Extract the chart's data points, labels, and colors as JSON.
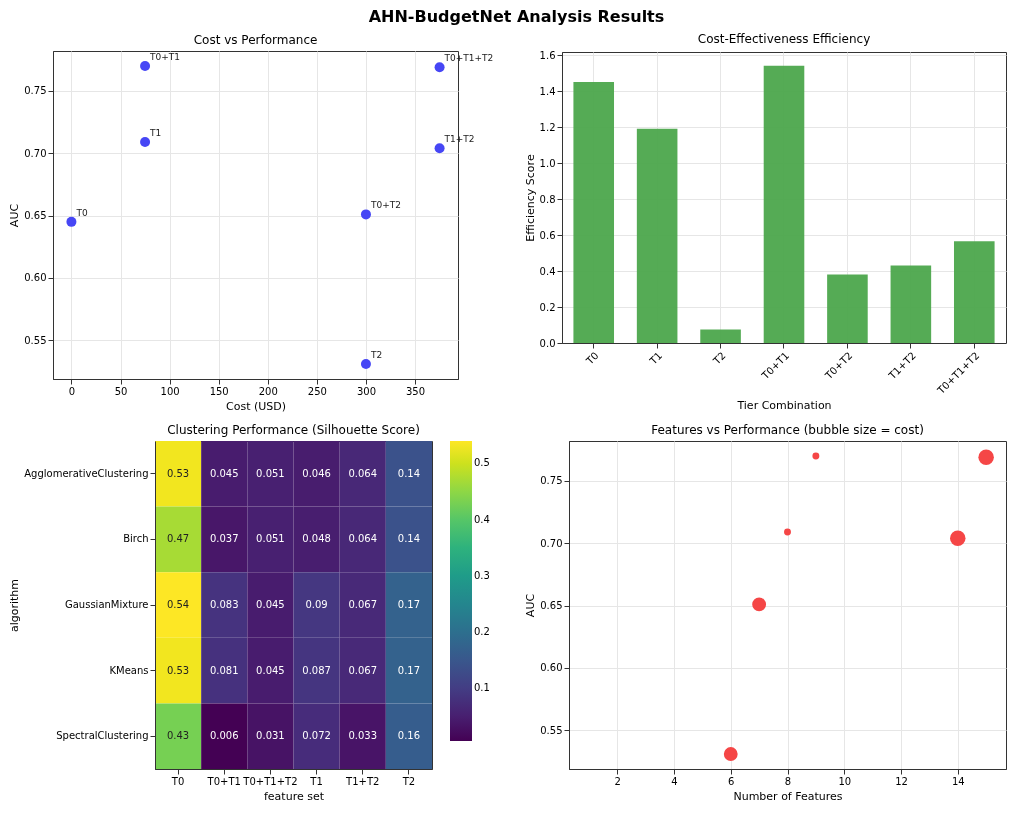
{
  "chart_data": [
    {
      "type": "other",
      "title": "AHN-BudgetNet Analysis Results"
    },
    {
      "type": "scatter",
      "title": "Cost vs Performance",
      "xlabel": "Cost (USD)",
      "ylabel": "AUC",
      "marker": "circle",
      "grid": true,
      "x": [
        0,
        75,
        300,
        75,
        300,
        375,
        375
      ],
      "values": [
        0.645,
        0.709,
        0.531,
        0.77,
        0.651,
        0.704,
        0.769
      ],
      "color": "#4646f5",
      "xlim": [
        -18.75,
        393.75
      ],
      "xticks": [
        0,
        50,
        100,
        150,
        200,
        250,
        300,
        350
      ],
      "ylim": [
        0.519,
        0.782
      ],
      "yticks": [
        0.55,
        {
          "value": 0.6,
          "label": "0.60"
        },
        0.65,
        {
          "value": 0.7,
          "label": "0.70"
        },
        0.75
      ],
      "annotations": [
        {
          "text": "T0",
          "x": 0,
          "y": 0.645
        },
        {
          "text": "T1",
          "x": 75,
          "y": 0.709
        },
        {
          "text": "T2",
          "x": 300,
          "y": 0.531
        },
        {
          "text": "T0+T1",
          "x": 75,
          "y": 0.77
        },
        {
          "text": "T0+T2",
          "x": 300,
          "y": 0.651
        },
        {
          "text": "T1+T2",
          "x": 375,
          "y": 0.704
        },
        {
          "text": "T0+T1+T2",
          "x": 375,
          "y": 0.769
        }
      ]
    },
    {
      "type": "bar",
      "title": "Cost-Effectiveness Efficiency",
      "xlabel": "Tier Combination",
      "ylabel": "Efficiency Score",
      "grid": true,
      "categories": [
        "T0",
        "T1",
        "T2",
        "T0+T1",
        "T0+T2",
        "T1+T2",
        "T0+T1+T2"
      ],
      "values": [
        1.45,
        1.19,
        0.075,
        1.54,
        0.38,
        0.43,
        0.565
      ],
      "color": "#4ca64c",
      "ylim": [
        0,
        1.617
      ],
      "yticks": [
        {
          "value": 0,
          "label": "0.0"
        },
        0.2,
        0.4,
        0.6,
        0.8,
        {
          "value": 1,
          "label": "1.0"
        },
        1.2,
        1.4,
        1.6
      ]
    },
    {
      "type": "heatmap",
      "title": "Clustering Performance (Silhouette Score)",
      "xlabel": "feature set",
      "ylabel": "algorithm",
      "data_labels": true,
      "categories": [
        "T0",
        "T0+T1",
        "T0+T1+T2",
        "T1",
        "T1+T2",
        "T2"
      ],
      "y_categories": [
        "AgglomerativeClustering",
        "Birch",
        "GaussianMixture",
        "KMeans",
        "SpectralClustering"
      ],
      "cells": [
        [
          0.53,
          0.045,
          0.051,
          0.046,
          0.064,
          0.14
        ],
        [
          0.47,
          0.037,
          0.051,
          0.048,
          0.064,
          0.14
        ],
        [
          0.54,
          0.083,
          0.045,
          0.09,
          0.067,
          0.17
        ],
        [
          0.53,
          0.081,
          0.045,
          0.087,
          0.067,
          0.17
        ],
        [
          0.43,
          0.006,
          0.031,
          0.072,
          0.033,
          0.16
        ]
      ],
      "clim": [
        0.006,
        0.54
      ],
      "cticks": [
        0.1,
        0.2,
        0.3,
        0.4,
        0.5
      ]
    },
    {
      "type": "bubble",
      "title": "Features vs Performance (bubble size = cost)",
      "xlabel": "Number of Features",
      "ylabel": "AUC",
      "grid": true,
      "x": [
        6,
        7,
        8,
        9,
        14,
        15
      ],
      "values": [
        0.531,
        0.651,
        0.709,
        0.77,
        0.704,
        0.769
      ],
      "sizes": [
        0.8,
        0.8,
        0.2,
        0.2,
        1,
        1
      ],
      "color": "#f54646",
      "xlim": [
        0.3,
        15.7
      ],
      "xticks": [
        2,
        4,
        6,
        8,
        10,
        12,
        14
      ],
      "ylim": [
        0.519,
        0.782
      ],
      "yticks": [
        0.55,
        {
          "value": 0.6,
          "label": "0.60"
        },
        0.65,
        {
          "value": 0.7,
          "label": "0.70"
        },
        0.75
      ]
    }
  ]
}
